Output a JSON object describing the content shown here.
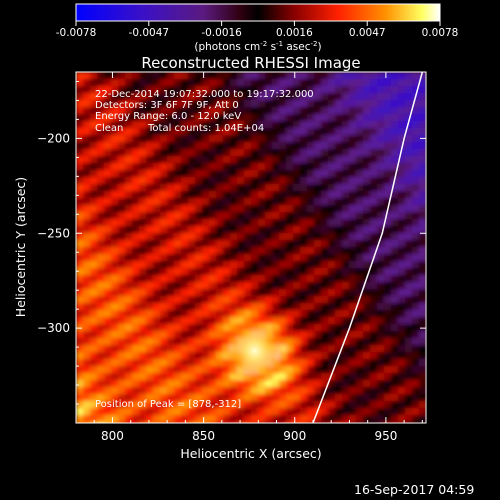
{
  "chart_data": {
    "type": "heatmap",
    "title": "Reconstructed RHESSI Image",
    "xlabel": "Heliocentric X (arcsec)",
    "ylabel": "Heliocentric Y (arcsec)",
    "xlim": [
      780,
      972
    ],
    "ylim": [
      -350,
      -165
    ],
    "xticks": [
      800,
      850,
      900,
      950
    ],
    "yticks": [
      -200,
      -250,
      -300
    ],
    "colorbar": {
      "ticks": [
        "-0.0078",
        "-0.0047",
        "-0.0016",
        "0.0016",
        "0.0047",
        "0.0078"
      ],
      "units_parts": [
        "(photons cm",
        "-2",
        " s",
        "-1",
        " asec",
        "-2",
        ")"
      ],
      "range": [
        -0.0078,
        0.0078
      ],
      "colormap": "blue-purple-red-orange-yellow-white"
    },
    "annotations": [
      "22-Dec-2014 19:07:32.000 to 19:17:32.000",
      "Detectors: 3F 6F 7F 9F, Att 0",
      "Energy Range: 6.0 - 12.0 keV",
      "Clean",
      "Total counts: 1.04E+04"
    ],
    "peak_label": "Position of Peak = [878,-312]",
    "peak": {
      "x": 878,
      "y": -312
    },
    "limb_points": [
      [
        910,
        -350
      ],
      [
        930,
        -300
      ],
      [
        948,
        -250
      ],
      [
        960,
        -200
      ],
      [
        970,
        -165
      ]
    ]
  },
  "footer": {
    "timestamp": "16-Sep-2017 04:59"
  }
}
